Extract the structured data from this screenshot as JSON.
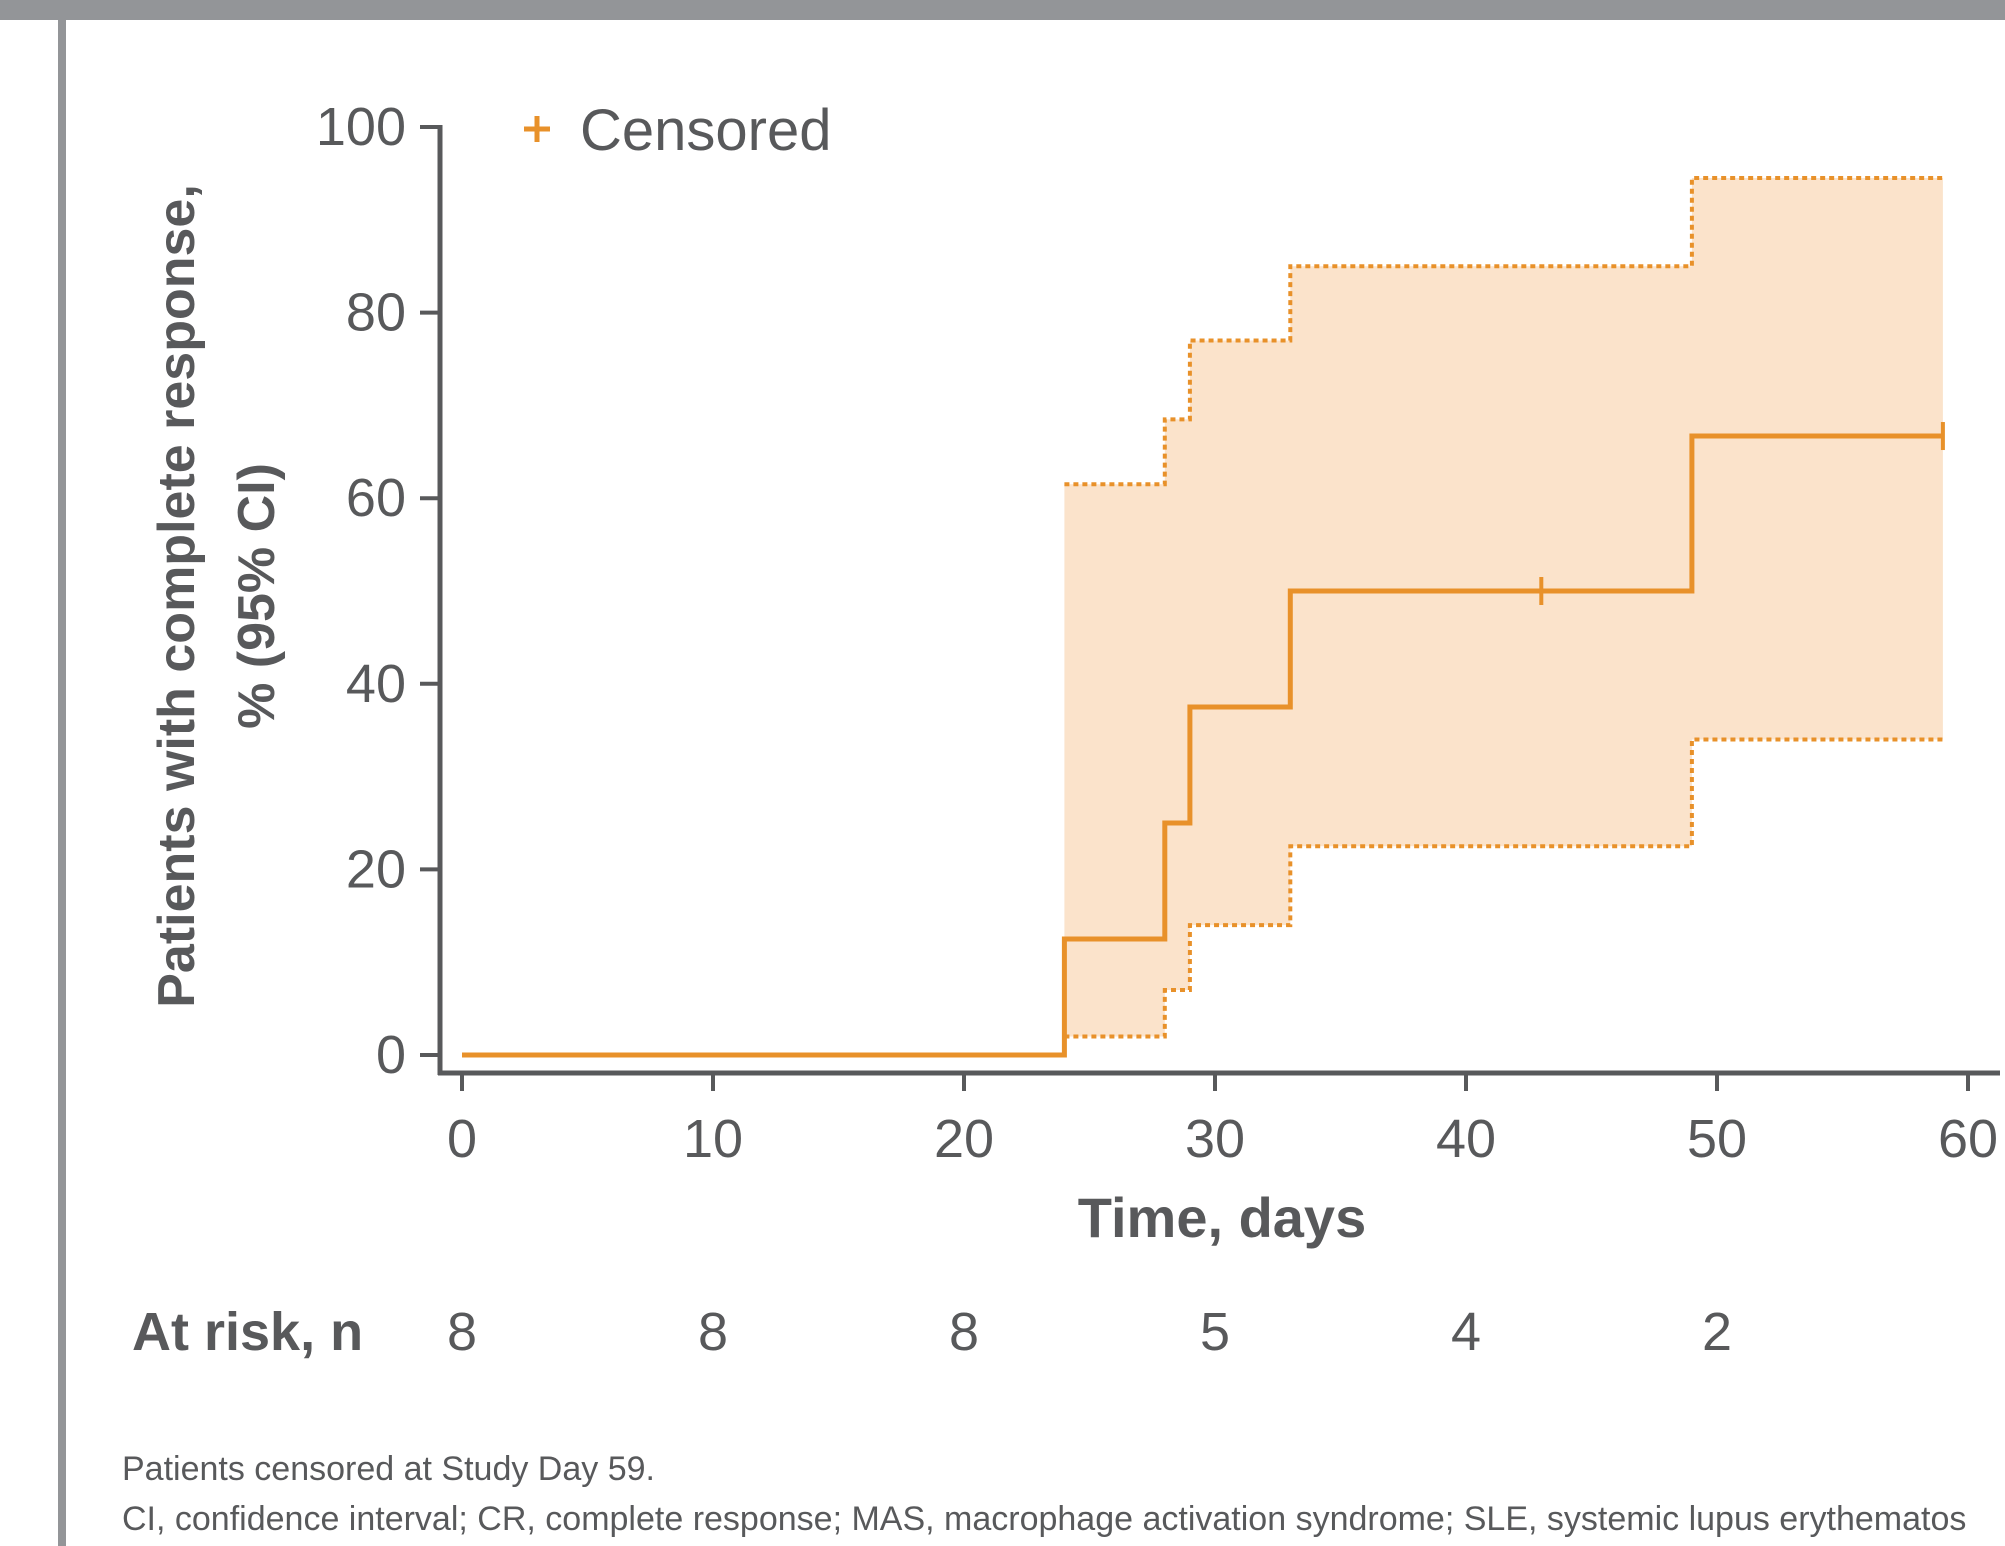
{
  "colors": {
    "line": "#e8912a",
    "band": "#fbe3cb",
    "axis": "#58595b",
    "frame": "#939598"
  },
  "chart_data": {
    "type": "line",
    "subtype": "kaplan-meier",
    "xlabel": "Time, days",
    "ylabel_line1": "Patients with complete response,",
    "ylabel_line2": "% (95% CI)",
    "xlim": [
      0,
      60
    ],
    "ylim": [
      0,
      100
    ],
    "xticks": [
      0,
      10,
      20,
      30,
      40,
      50,
      60
    ],
    "yticks": [
      0,
      20,
      40,
      60,
      80,
      100
    ],
    "legend": {
      "label": "Censored",
      "marker": "+",
      "placement": "top-left"
    },
    "series": [
      {
        "role": "estimate",
        "x": [
          0,
          24,
          28,
          29,
          33,
          49,
          59
        ],
        "y": [
          0,
          12.5,
          25,
          37.5,
          50,
          66.7,
          66.7
        ]
      },
      {
        "role": "upper_ci",
        "x": [
          24,
          28,
          29,
          33,
          49,
          59
        ],
        "y": [
          61.5,
          68.5,
          77,
          85,
          94.5,
          94.5
        ]
      },
      {
        "role": "lower_ci",
        "x": [
          24,
          28,
          29,
          33,
          49,
          59
        ],
        "y": [
          2,
          7,
          14,
          22.5,
          34,
          34
        ]
      }
    ],
    "censored": [
      {
        "x": 43,
        "y": 50
      },
      {
        "x": 59,
        "y": 66.7
      }
    ],
    "at_risk": {
      "label": "At risk, n",
      "times": [
        0,
        10,
        20,
        30,
        40,
        50
      ],
      "values": [
        "8",
        "8",
        "8",
        "5",
        "4",
        "2"
      ]
    }
  },
  "footnotes": [
    "Patients censored at Study Day 59.",
    "CI, confidence interval; CR, complete response; MAS, macrophage activation syndrome; SLE, systemic lupus erythematos"
  ]
}
